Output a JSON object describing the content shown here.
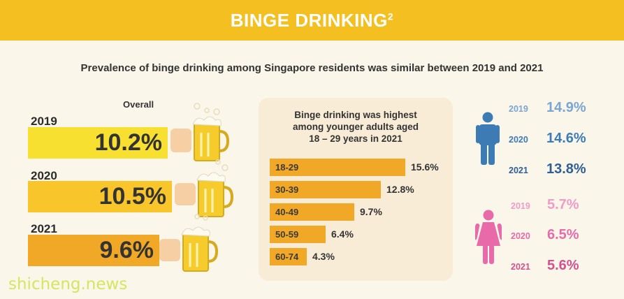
{
  "header": {
    "title": "BINGE DRINKING",
    "superscript": "2"
  },
  "subtitle": "Prevalence of binge drinking among Singapore residents was similar between 2019 and 2021",
  "colors": {
    "header": "#f4c021",
    "bar_2019": "#f7e02f",
    "bar_2020": "#f8c62b",
    "bar_2021": "#f0a826",
    "male": "#3d7bb5",
    "female": "#e86aa8"
  },
  "chart_data": [
    {
      "type": "bar",
      "title": "Overall",
      "categories": [
        "2019",
        "2020",
        "2021"
      ],
      "values": [
        10.2,
        10.5,
        9.6
      ],
      "labels": [
        "10.2%",
        "10.5%",
        "9.6%"
      ]
    },
    {
      "type": "bar",
      "orientation": "horizontal",
      "title": "Binge drinking was highest among younger adults aged 18 – 29 years in 2021",
      "title_lines": [
        "Binge drinking was highest",
        "among younger adults aged",
        "18 – 29 years in 2021"
      ],
      "categories": [
        "18-29",
        "30-39",
        "40-49",
        "50-59",
        "60-74"
      ],
      "values": [
        15.6,
        12.8,
        9.7,
        6.4,
        4.3
      ],
      "labels": [
        "15.6%",
        "12.8%",
        "9.7%",
        "6.4%",
        "4.3%"
      ]
    },
    {
      "type": "table",
      "series": [
        {
          "name": "male-icon",
          "years": [
            "2019",
            "2020",
            "2021"
          ],
          "values": [
            14.9,
            14.6,
            13.8
          ],
          "labels": [
            "14.9%",
            "14.6%",
            "13.8%"
          ],
          "year_colors": [
            "#7aa6d2",
            "#3d7bb5",
            "#2f5f94"
          ]
        },
        {
          "name": "female-icon",
          "years": [
            "2019",
            "2020",
            "2021"
          ],
          "values": [
            5.7,
            6.5,
            5.6
          ],
          "labels": [
            "5.7%",
            "6.5%",
            "5.6%"
          ],
          "year_colors": [
            "#f29bc6",
            "#e86aa8",
            "#d4508f"
          ]
        }
      ]
    }
  ],
  "watermark": "shicheng.news"
}
